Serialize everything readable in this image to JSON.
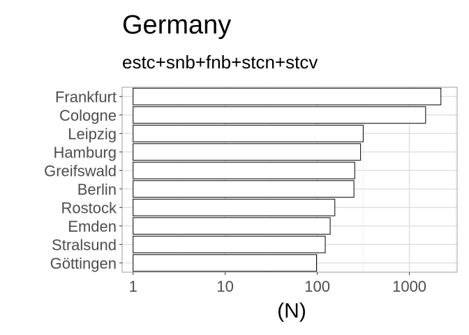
{
  "chart_data": {
    "type": "bar",
    "orientation": "horizontal",
    "title": "Germany",
    "subtitle": "estc+snb+fnb+stcn+stcv",
    "xlabel": "(N)",
    "ylabel": "",
    "x_scale": "log10",
    "xlim": [
      0.76,
      3300
    ],
    "xticks": [
      1,
      10,
      100,
      1000
    ],
    "xtick_labels": [
      "1",
      "10",
      "100",
      "1000"
    ],
    "grid": true,
    "categories": [
      "Frankfurt",
      "Cologne",
      "Leipzig",
      "Hamburg",
      "Greifswald",
      "Berlin",
      "Rostock",
      "Emden",
      "Stralsund",
      "Göttingen"
    ],
    "values": [
      2200,
      1500,
      315,
      295,
      255,
      250,
      155,
      138,
      122,
      98
    ],
    "colors": {
      "bar_fill": "#ffffff",
      "bar_stroke": "#000000"
    }
  }
}
